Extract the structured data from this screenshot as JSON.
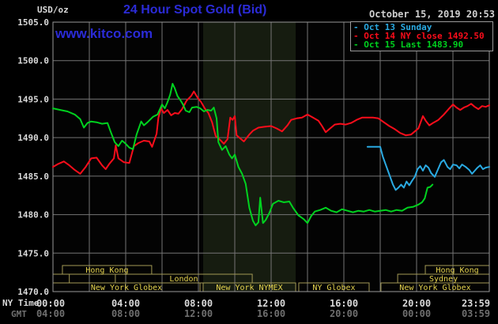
{
  "header": {
    "unit": "USD/oz",
    "title": "24 Hour Spot Gold (Bid)",
    "datetime": "October 15, 2019 20:53",
    "watermark": "www.kitco.com"
  },
  "axes_corner": {
    "ny_time": "NY Time",
    "gmt": "GMT"
  },
  "colors": {
    "title_blue": "#2b2bd7",
    "watermark_blue": "#2b2bd7",
    "text_light": "#d9d9d9",
    "text_gray": "#6f6f6f",
    "grid": "#757575",
    "plot_border": "#999999",
    "plot_bg": "#030303",
    "band_bg": "#161c10",
    "session_border": "#a39a55",
    "session_text": "#e6d44f",
    "red": "#fb0d1b",
    "green": "#00d21f",
    "cyan": "#2aaae2"
  },
  "chart_data": {
    "type": "line",
    "title": "24 Hour Spot Gold (Bid)",
    "unit": "USD/oz",
    "timestamp_shown": "October 15, 2019 20:53",
    "x_axis": {
      "primary_label": "NY Time",
      "secondary_label": "GMT",
      "range_hours": [
        0,
        24
      ],
      "grid_step_hours": 2,
      "ticks": [
        {
          "h": 0,
          "ny": "00:00",
          "gmt": "04:00"
        },
        {
          "h": 4,
          "ny": "04:00",
          "gmt": "08:00"
        },
        {
          "h": 8,
          "ny": "08:00",
          "gmt": "12:00"
        },
        {
          "h": 12,
          "ny": "12:00",
          "gmt": "16:00"
        },
        {
          "h": 16,
          "ny": "16:00",
          "gmt": "20:00"
        },
        {
          "h": 20,
          "ny": "20:00",
          "gmt": "00:00"
        },
        {
          "h": 24,
          "ny": "23:59",
          "gmt": "03:59"
        }
      ]
    },
    "y_axis": {
      "min": 1470,
      "max": 1505,
      "step": 5,
      "labels": [
        "1505.0",
        "1500.0",
        "1495.0",
        "1490.0",
        "1485.0",
        "1480.0",
        "1475.0",
        "1470.0"
      ]
    },
    "highlight_band": {
      "name": "ny-nymex-session",
      "from_hour": 8.26,
      "to_hour": 13.35
    },
    "legend": [
      {
        "label": "- Oct 13 Sunday",
        "color_key": "cyan"
      },
      {
        "label": "- Oct 14 NY close 1492.50",
        "color_key": "red"
      },
      {
        "label": "- Oct 15 Last 1483.90",
        "color_key": "green"
      }
    ],
    "series": [
      {
        "name": "Oct 13",
        "color_key": "cyan",
        "points": [
          [
            17.3,
            1488.8
          ],
          [
            18.0,
            1488.8
          ],
          [
            18.15,
            1487.5
          ],
          [
            18.3,
            1486.5
          ],
          [
            18.5,
            1485.2
          ],
          [
            18.7,
            1483.9
          ],
          [
            18.85,
            1483.2
          ],
          [
            19.0,
            1483.5
          ],
          [
            19.15,
            1483.9
          ],
          [
            19.3,
            1483.5
          ],
          [
            19.45,
            1484.3
          ],
          [
            19.6,
            1483.8
          ],
          [
            19.75,
            1484.4
          ],
          [
            19.9,
            1484.9
          ],
          [
            20.05,
            1485.9
          ],
          [
            20.2,
            1486.3
          ],
          [
            20.35,
            1485.7
          ],
          [
            20.5,
            1486.4
          ],
          [
            20.65,
            1486.1
          ],
          [
            20.8,
            1485.4
          ],
          [
            21.0,
            1484.9
          ],
          [
            21.2,
            1486.0
          ],
          [
            21.35,
            1486.8
          ],
          [
            21.5,
            1487.1
          ],
          [
            21.7,
            1486.2
          ],
          [
            21.85,
            1485.9
          ],
          [
            22.0,
            1486.5
          ],
          [
            22.2,
            1486.4
          ],
          [
            22.35,
            1486.0
          ],
          [
            22.5,
            1486.5
          ],
          [
            22.7,
            1486.2
          ],
          [
            22.9,
            1485.8
          ],
          [
            23.05,
            1485.3
          ],
          [
            23.2,
            1485.7
          ],
          [
            23.35,
            1486.1
          ],
          [
            23.5,
            1486.4
          ],
          [
            23.65,
            1485.9
          ],
          [
            23.8,
            1486.1
          ],
          [
            24,
            1486.2
          ]
        ]
      },
      {
        "name": "Oct 14",
        "color_key": "red",
        "points": [
          [
            0,
            1486.2
          ],
          [
            0.3,
            1486.6
          ],
          [
            0.6,
            1486.9
          ],
          [
            0.9,
            1486.4
          ],
          [
            1.2,
            1485.8
          ],
          [
            1.5,
            1485.3
          ],
          [
            1.8,
            1486.2
          ],
          [
            2.1,
            1487.3
          ],
          [
            2.4,
            1487.4
          ],
          [
            2.7,
            1486.4
          ],
          [
            2.9,
            1485.9
          ],
          [
            3.1,
            1486.6
          ],
          [
            3.35,
            1487.3
          ],
          [
            3.45,
            1489.0
          ],
          [
            3.6,
            1487.3
          ],
          [
            3.9,
            1486.8
          ],
          [
            4.2,
            1486.7
          ],
          [
            4.45,
            1488.9
          ],
          [
            4.7,
            1489.3
          ],
          [
            5.0,
            1489.6
          ],
          [
            5.3,
            1489.5
          ],
          [
            5.45,
            1488.8
          ],
          [
            5.7,
            1490.5
          ],
          [
            5.8,
            1492.6
          ],
          [
            5.95,
            1493.8
          ],
          [
            6.1,
            1493.2
          ],
          [
            6.3,
            1493.6
          ],
          [
            6.5,
            1492.9
          ],
          [
            6.7,
            1493.2
          ],
          [
            6.9,
            1493.1
          ],
          [
            7.1,
            1493.7
          ],
          [
            7.35,
            1494.8
          ],
          [
            7.6,
            1495.4
          ],
          [
            7.75,
            1496.0
          ],
          [
            7.95,
            1495.2
          ],
          [
            8.15,
            1494.6
          ],
          [
            8.35,
            1493.8
          ],
          [
            8.55,
            1493.2
          ],
          [
            8.75,
            1492.0
          ],
          [
            8.95,
            1490.2
          ],
          [
            9.2,
            1489.7
          ],
          [
            9.4,
            1489.2
          ],
          [
            9.6,
            1489.8
          ],
          [
            9.75,
            1492.6
          ],
          [
            9.88,
            1492.3
          ],
          [
            10.0,
            1492.8
          ],
          [
            10.1,
            1490.3
          ],
          [
            10.3,
            1489.9
          ],
          [
            10.5,
            1489.5
          ],
          [
            10.8,
            1490.4
          ],
          [
            11.0,
            1490.9
          ],
          [
            11.3,
            1491.3
          ],
          [
            11.6,
            1491.4
          ],
          [
            12.0,
            1491.5
          ],
          [
            12.3,
            1491.2
          ],
          [
            12.6,
            1490.8
          ],
          [
            12.9,
            1491.6
          ],
          [
            13.1,
            1492.3
          ],
          [
            13.4,
            1492.5
          ],
          [
            13.7,
            1492.6
          ],
          [
            14.0,
            1493.0
          ],
          [
            14.3,
            1492.6
          ],
          [
            14.6,
            1492.2
          ],
          [
            14.8,
            1491.5
          ],
          [
            15.0,
            1490.7
          ],
          [
            15.2,
            1491.1
          ],
          [
            15.5,
            1491.7
          ],
          [
            15.8,
            1491.8
          ],
          [
            16.1,
            1491.7
          ],
          [
            16.4,
            1491.9
          ],
          [
            16.7,
            1492.3
          ],
          [
            17.0,
            1492.6
          ],
          [
            17.3,
            1492.6
          ],
          [
            17.6,
            1492.6
          ],
          [
            17.9,
            1492.5
          ],
          [
            18.2,
            1492.0
          ],
          [
            18.5,
            1491.5
          ],
          [
            18.8,
            1491.1
          ],
          [
            19.1,
            1490.6
          ],
          [
            19.4,
            1490.3
          ],
          [
            19.7,
            1490.4
          ],
          [
            19.9,
            1490.8
          ],
          [
            20.1,
            1491.2
          ],
          [
            20.35,
            1492.8
          ],
          [
            20.5,
            1492.2
          ],
          [
            20.7,
            1491.6
          ],
          [
            20.9,
            1491.9
          ],
          [
            21.2,
            1492.3
          ],
          [
            21.5,
            1493.0
          ],
          [
            21.8,
            1493.8
          ],
          [
            22.0,
            1494.3
          ],
          [
            22.2,
            1493.9
          ],
          [
            22.4,
            1493.6
          ],
          [
            22.6,
            1493.9
          ],
          [
            22.8,
            1494.1
          ],
          [
            23.0,
            1494.4
          ],
          [
            23.2,
            1494.0
          ],
          [
            23.4,
            1493.7
          ],
          [
            23.6,
            1494.1
          ],
          [
            23.8,
            1494.0
          ],
          [
            24,
            1494.2
          ]
        ]
      },
      {
        "name": "Oct 15",
        "color_key": "green",
        "points": [
          [
            0,
            1493.8
          ],
          [
            0.4,
            1493.6
          ],
          [
            0.8,
            1493.4
          ],
          [
            1.2,
            1493.0
          ],
          [
            1.5,
            1492.4
          ],
          [
            1.7,
            1491.3
          ],
          [
            1.9,
            1491.9
          ],
          [
            2.1,
            1492.1
          ],
          [
            2.4,
            1492.0
          ],
          [
            2.7,
            1491.8
          ],
          [
            3.0,
            1491.9
          ],
          [
            3.2,
            1490.6
          ],
          [
            3.4,
            1489.4
          ],
          [
            3.6,
            1488.9
          ],
          [
            3.8,
            1489.6
          ],
          [
            4.0,
            1489.2
          ],
          [
            4.2,
            1488.7
          ],
          [
            4.4,
            1488.5
          ],
          [
            4.6,
            1490.4
          ],
          [
            4.85,
            1492.1
          ],
          [
            5.0,
            1491.6
          ],
          [
            5.2,
            1492.0
          ],
          [
            5.5,
            1492.7
          ],
          [
            5.75,
            1493.0
          ],
          [
            6.0,
            1494.3
          ],
          [
            6.15,
            1493.8
          ],
          [
            6.3,
            1494.6
          ],
          [
            6.45,
            1495.6
          ],
          [
            6.58,
            1497.0
          ],
          [
            6.7,
            1496.4
          ],
          [
            6.85,
            1495.4
          ],
          [
            7.0,
            1494.9
          ],
          [
            7.15,
            1494.3
          ],
          [
            7.3,
            1493.5
          ],
          [
            7.5,
            1493.3
          ],
          [
            7.65,
            1493.9
          ],
          [
            7.9,
            1494.0
          ],
          [
            8.1,
            1493.8
          ],
          [
            8.3,
            1493.4
          ],
          [
            8.5,
            1493.6
          ],
          [
            8.7,
            1493.5
          ],
          [
            8.85,
            1493.9
          ],
          [
            9.0,
            1492.5
          ],
          [
            9.1,
            1489.4
          ],
          [
            9.3,
            1488.4
          ],
          [
            9.5,
            1488.9
          ],
          [
            9.7,
            1487.8
          ],
          [
            9.85,
            1487.3
          ],
          [
            10.0,
            1487.8
          ],
          [
            10.2,
            1486.2
          ],
          [
            10.4,
            1485.3
          ],
          [
            10.6,
            1484.0
          ],
          [
            10.8,
            1480.9
          ],
          [
            11.0,
            1479.2
          ],
          [
            11.15,
            1478.6
          ],
          [
            11.3,
            1479.0
          ],
          [
            11.4,
            1482.2
          ],
          [
            11.55,
            1478.9
          ],
          [
            11.7,
            1479.3
          ],
          [
            11.9,
            1480.2
          ],
          [
            12.1,
            1481.4
          ],
          [
            12.4,
            1481.8
          ],
          [
            12.7,
            1481.6
          ],
          [
            13.0,
            1481.7
          ],
          [
            13.2,
            1480.9
          ],
          [
            13.5,
            1479.9
          ],
          [
            13.8,
            1479.4
          ],
          [
            14.0,
            1478.9
          ],
          [
            14.2,
            1479.8
          ],
          [
            14.4,
            1480.4
          ],
          [
            14.7,
            1480.6
          ],
          [
            15.0,
            1480.9
          ],
          [
            15.3,
            1480.5
          ],
          [
            15.6,
            1480.3
          ],
          [
            15.9,
            1480.7
          ],
          [
            16.2,
            1480.5
          ],
          [
            16.5,
            1480.3
          ],
          [
            16.8,
            1480.5
          ],
          [
            17.1,
            1480.4
          ],
          [
            17.4,
            1480.6
          ],
          [
            17.7,
            1480.4
          ],
          [
            18.0,
            1480.5
          ],
          [
            18.3,
            1480.6
          ],
          [
            18.6,
            1480.4
          ],
          [
            18.9,
            1480.6
          ],
          [
            19.2,
            1480.5
          ],
          [
            19.5,
            1480.9
          ],
          [
            19.8,
            1481.0
          ],
          [
            20.1,
            1481.3
          ],
          [
            20.3,
            1481.6
          ],
          [
            20.45,
            1482.1
          ],
          [
            20.6,
            1483.5
          ],
          [
            20.75,
            1483.6
          ],
          [
            20.88,
            1483.9
          ]
        ]
      }
    ],
    "sessions": [
      {
        "row": 0,
        "boxes": [
          {
            "label": "Hong Kong",
            "from": 0.52,
            "to": 5.43
          },
          {
            "label": "Hong Kong",
            "from": 20.48,
            "to": 24
          }
        ]
      },
      {
        "row": 1,
        "boxes": [
          {
            "label": "",
            "from": 0,
            "to": 0.9
          },
          {
            "label": "London",
            "from": 3.43,
            "to": 10.96
          },
          {
            "label": "Sydney",
            "from": 18.96,
            "to": 24
          }
        ]
      },
      {
        "row": 2,
        "boxes": [
          {
            "label": "New York Globex",
            "from": 0,
            "to": 8.09
          },
          {
            "label": "New York NYMEX",
            "from": 8.26,
            "to": 13.35
          },
          {
            "label": "NY Globex",
            "from": 13.52,
            "to": 17.39
          },
          {
            "label": "New York Globex",
            "from": 18.04,
            "to": 24
          }
        ]
      }
    ]
  }
}
